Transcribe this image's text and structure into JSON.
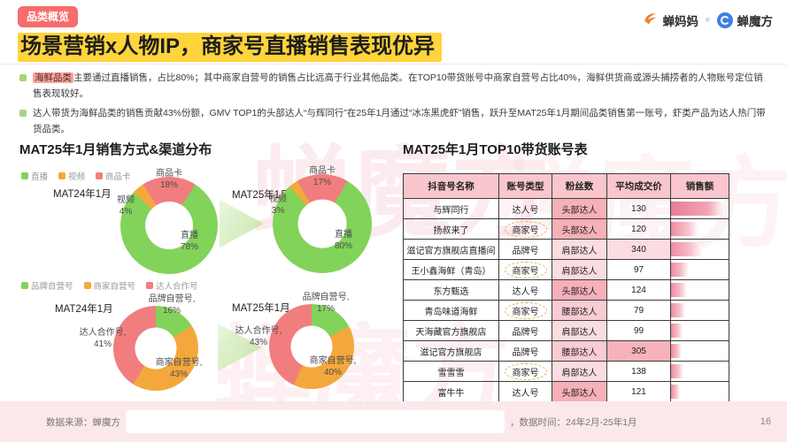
{
  "watermark": "蝉魔方",
  "colors": {
    "直播": "#82D35A",
    "视频": "#F4A83C",
    "商品卡": "#F17D7E",
    "品牌自营号": "#82D35A",
    "商家自营号": "#F4A83C",
    "达人合作号": "#F17D7E",
    "badge_bg": "#F76C6C",
    "title_highlight": "#FFD43B",
    "table_header_bg": "#F8C6CC",
    "footer_bg": "#FBE8EA"
  },
  "header": {
    "badge": "品类概览",
    "title": "场景营销x人物IP，商家号直播销售表现优异",
    "logo_left": "蝉妈妈",
    "logo_sep": "×",
    "logo_right": "蝉魔方"
  },
  "bullets": [
    {
      "highlight": "海鲜品类",
      "text": "主要通过直播销售，占比80%；其中商家自营号的销售占比远高于行业其他品类。在TOP10带货账号中商家自营号占比40%，海鲜供货商或源头捕捞者的人物账号定位销售表现较好。"
    },
    {
      "highlight": "",
      "text": "达人带货为海鲜品类的销售贡献43%份额，GMV TOP1的头部达人“与辉同行”在25年1月通过“冰冻黑虎虾”销售，跃升至MAT25年1月期间品类销售第一账号，虾类产品为达人热门带货品类。"
    }
  ],
  "left": {
    "title": "MAT25年1月销售方式&渠道分布",
    "legends": [
      [
        "直播",
        "视频",
        "商品卡"
      ],
      [
        "品牌自营号",
        "商家自营号",
        "达人合作号"
      ]
    ],
    "periods": [
      "MAT24年1月",
      "MAT25年1月",
      "MAT24年1月",
      "MAT25年1月"
    ]
  },
  "chart_data": [
    {
      "type": "pie",
      "title": "销售方式分布 MAT24年1月",
      "legend_position": "top",
      "series": [
        {
          "name": "直播",
          "value": 78
        },
        {
          "name": "视频",
          "value": 4
        },
        {
          "name": "商品卡",
          "value": 18
        }
      ]
    },
    {
      "type": "pie",
      "title": "销售方式分布 MAT25年1月",
      "legend_position": "top",
      "series": [
        {
          "name": "直播",
          "value": 80
        },
        {
          "name": "视频",
          "value": 3
        },
        {
          "name": "商品卡",
          "value": 17
        }
      ]
    },
    {
      "type": "pie",
      "title": "渠道(账号类型)分布 MAT24年1月",
      "legend_position": "top",
      "series": [
        {
          "name": "品牌自营号",
          "value": 16
        },
        {
          "name": "商家自营号",
          "value": 43
        },
        {
          "name": "达人合作号",
          "value": 41
        }
      ]
    },
    {
      "type": "pie",
      "title": "渠道(账号类型)分布 MAT25年1月",
      "legend_position": "top",
      "series": [
        {
          "name": "品牌自营号",
          "value": 17
        },
        {
          "name": "商家自营号",
          "value": 40
        },
        {
          "name": "达人合作号",
          "value": 43
        }
      ]
    }
  ],
  "table": {
    "title": "MAT25年1月TOP10带货账号表",
    "headers": [
      "抖音号名称",
      "账号类型",
      "粉丝数",
      "平均成交价",
      "销售额"
    ],
    "rows": [
      {
        "name": "与辉同行",
        "type": "达人号",
        "circled": false,
        "tier": "头部达人",
        "price": "130",
        "price_hl": "none",
        "sales_bar_pct": 92
      },
      {
        "name": "扬叔来了",
        "type": "商家号",
        "circled": true,
        "tier": "头部达人",
        "price": "120",
        "price_hl": "none",
        "sales_bar_pct": 48
      },
      {
        "name": "滋记官方旗舰店直播间",
        "type": "品牌号",
        "circled": false,
        "tier": "肩部达人",
        "price": "340",
        "price_hl": "light",
        "sales_bar_pct": 55
      },
      {
        "name": "王小鑫海鲜（青岛）",
        "type": "商家号",
        "circled": true,
        "tier": "肩部达人",
        "price": "97",
        "price_hl": "none",
        "sales_bar_pct": 30
      },
      {
        "name": "东方甄选",
        "type": "达人号",
        "circled": false,
        "tier": "头部达人",
        "price": "124",
        "price_hl": "none",
        "sales_bar_pct": 28
      },
      {
        "name": "青岛味道海鲜",
        "type": "商家号",
        "circled": true,
        "tier": "腰部达人",
        "price": "79",
        "price_hl": "none",
        "sales_bar_pct": 24
      },
      {
        "name": "天海藏官方旗舰店",
        "type": "品牌号",
        "circled": false,
        "tier": "肩部达人",
        "price": "99",
        "price_hl": "none",
        "sales_bar_pct": 20
      },
      {
        "name": "滋记官方旗舰店",
        "type": "品牌号",
        "circled": false,
        "tier": "腰部达人",
        "price": "305",
        "price_hl": "strong",
        "sales_bar_pct": 18
      },
      {
        "name": "雪雪雪",
        "type": "商家号",
        "circled": true,
        "tier": "肩部达人",
        "price": "138",
        "price_hl": "none",
        "sales_bar_pct": 22
      },
      {
        "name": "富牛牛",
        "type": "达人号",
        "circled": false,
        "tier": "头部达人",
        "price": "121",
        "price_hl": "none",
        "sales_bar_pct": 16
      }
    ]
  },
  "footer": {
    "source_label": "数据来源：蝉魔方",
    "time_label": "，数据时间：24年2月-25年1月",
    "page": "16"
  }
}
